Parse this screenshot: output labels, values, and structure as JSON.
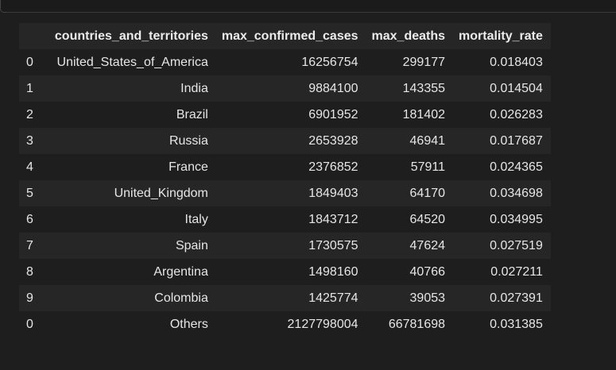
{
  "table": {
    "columns": [
      "",
      "countries_and_territories",
      "max_confirmed_cases",
      "max_deaths",
      "mortality_rate"
    ],
    "rows": [
      {
        "index": "0",
        "country": "United_States_of_America",
        "cases": "16256754",
        "deaths": "299177",
        "rate": "0.018403"
      },
      {
        "index": "1",
        "country": "India",
        "cases": "9884100",
        "deaths": "143355",
        "rate": "0.014504"
      },
      {
        "index": "2",
        "country": "Brazil",
        "cases": "6901952",
        "deaths": "181402",
        "rate": "0.026283"
      },
      {
        "index": "3",
        "country": "Russia",
        "cases": "2653928",
        "deaths": "46941",
        "rate": "0.017687"
      },
      {
        "index": "4",
        "country": "France",
        "cases": "2376852",
        "deaths": "57911",
        "rate": "0.024365"
      },
      {
        "index": "5",
        "country": "United_Kingdom",
        "cases": "1849403",
        "deaths": "64170",
        "rate": "0.034698"
      },
      {
        "index": "6",
        "country": "Italy",
        "cases": "1843712",
        "deaths": "64520",
        "rate": "0.034995"
      },
      {
        "index": "7",
        "country": "Spain",
        "cases": "1730575",
        "deaths": "47624",
        "rate": "0.027519"
      },
      {
        "index": "8",
        "country": "Argentina",
        "cases": "1498160",
        "deaths": "40766",
        "rate": "0.027211"
      },
      {
        "index": "9",
        "country": "Colombia",
        "cases": "1425774",
        "deaths": "39053",
        "rate": "0.027391"
      },
      {
        "index": "0",
        "country": "Others",
        "cases": "2127798004",
        "deaths": "66781698",
        "rate": "0.031385"
      }
    ]
  },
  "theme": {
    "background": "#1e1e1e",
    "row_stripe": "#262626",
    "text": "#e6e6e6"
  }
}
